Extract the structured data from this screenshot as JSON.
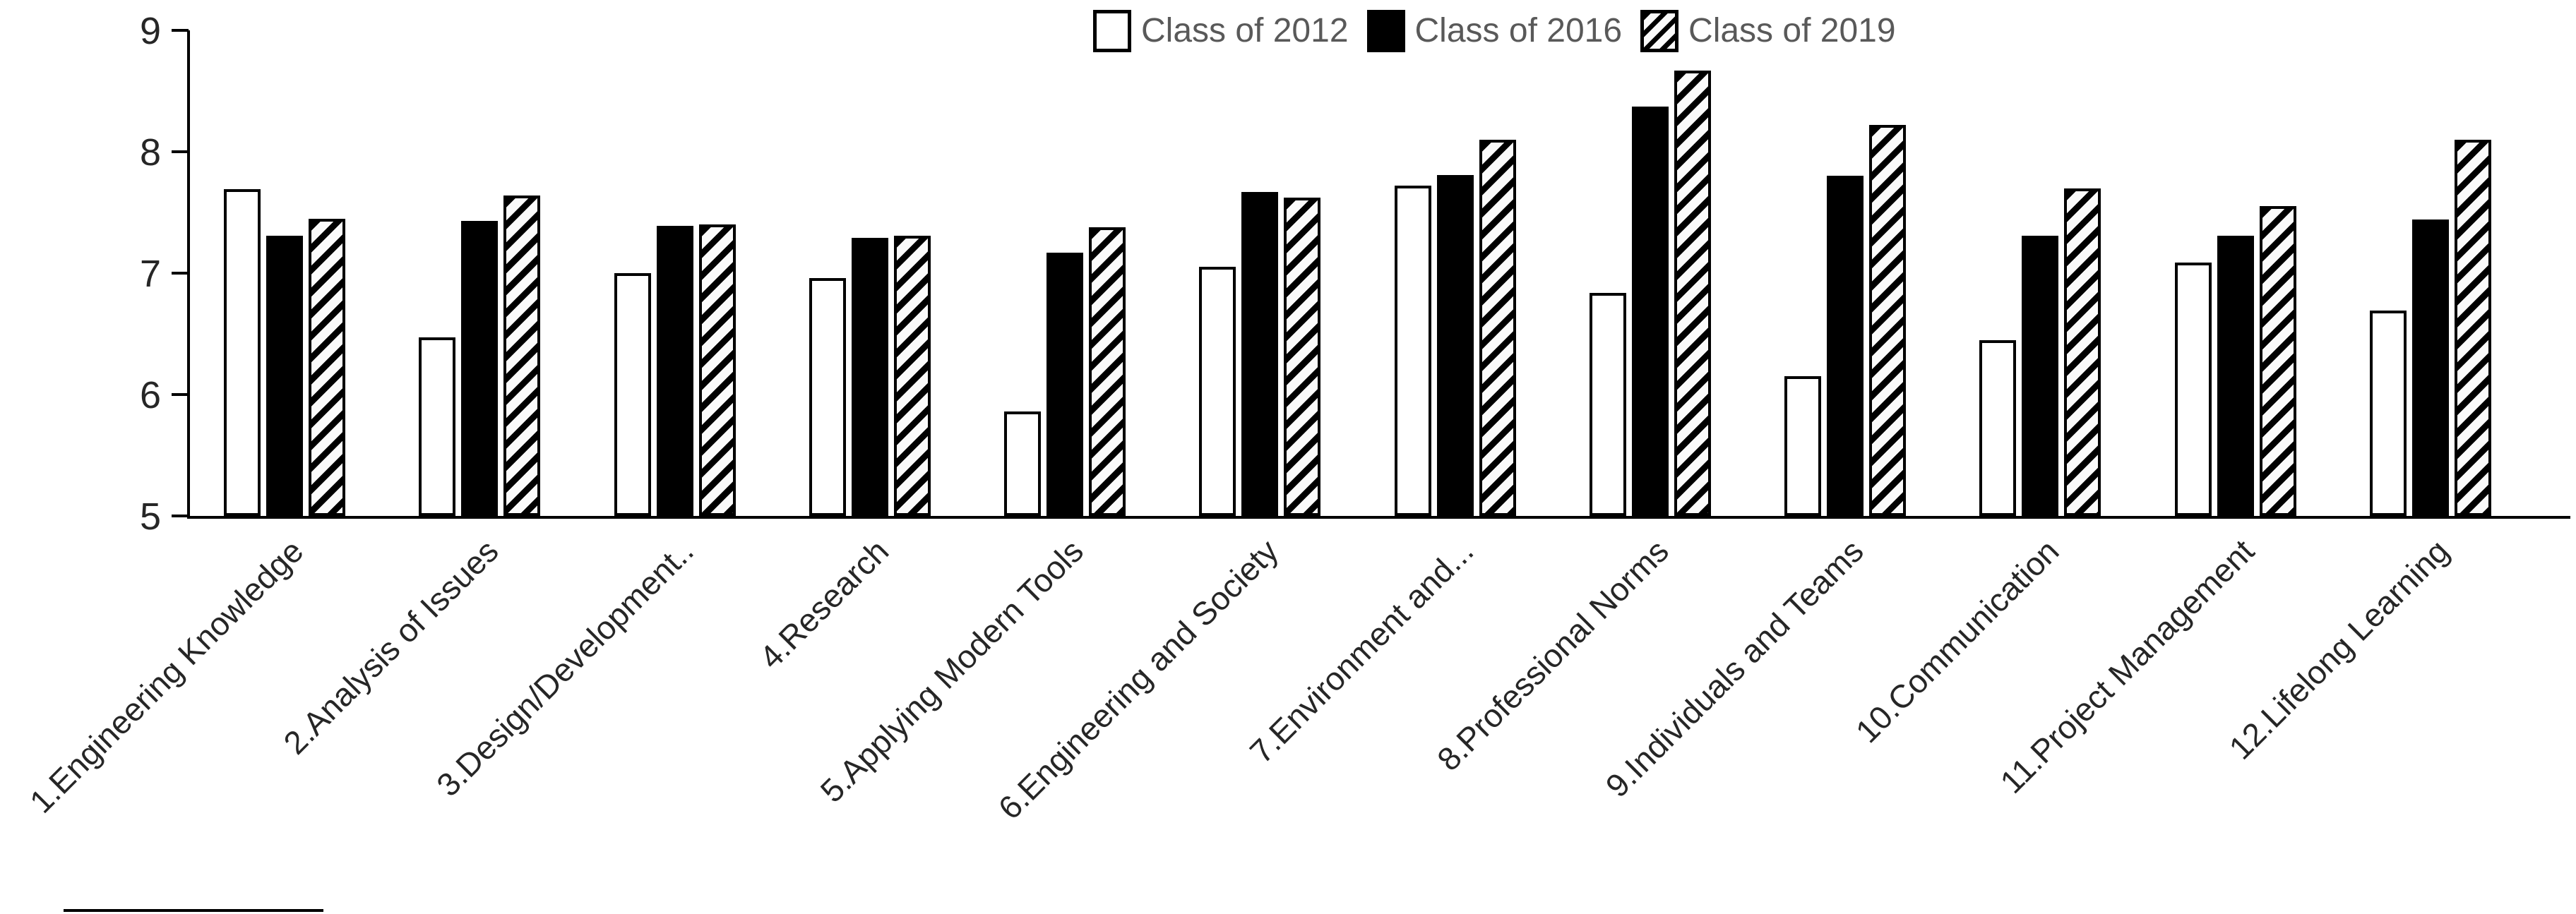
{
  "colors": {
    "bar_outline": "#000000",
    "bar_fill_black": "#000000",
    "bar_fill_white": "#ffffff",
    "legend_text": "#595959",
    "axis_text": "#262626",
    "background": "#ffffff"
  },
  "legend": {
    "items": [
      "Class of 2012",
      "Class of 2016",
      "Class of 2019"
    ]
  },
  "chart_data": {
    "type": "bar",
    "title": "",
    "xlabel": "",
    "ylabel": "",
    "ylim": [
      5,
      9
    ],
    "y_ticks": [
      9,
      8,
      7,
      6,
      5
    ],
    "grid": false,
    "legend_position": "top-center",
    "categories": [
      "1.Engineering Knowledge",
      "2.Analysis of Issues",
      "3.Design/Development..",
      "4.Research",
      "5.Applying Modern Tools",
      "6.Engineering and Society",
      "7.Environment and...",
      "8.Professional Norms",
      "9.Individuals and Teams",
      "10.Communication",
      "11.Project Management",
      "12.Lifelong Learning"
    ],
    "series": [
      {
        "name": "Class of 2012",
        "style": "white",
        "values": [
          7.69,
          6.47,
          7.0,
          6.96,
          5.86,
          7.05,
          7.72,
          6.84,
          6.15,
          6.45,
          7.09,
          6.69
        ]
      },
      {
        "name": "Class of 2016",
        "style": "black",
        "values": [
          7.31,
          7.43,
          7.39,
          7.29,
          7.17,
          7.67,
          7.81,
          8.37,
          7.8,
          7.31,
          7.31,
          7.44
        ]
      },
      {
        "name": "Class of 2019",
        "style": "hatch",
        "values": [
          7.45,
          7.64,
          7.4,
          7.31,
          7.38,
          7.62,
          8.1,
          8.67,
          8.22,
          7.7,
          7.55,
          8.1
        ]
      }
    ]
  }
}
